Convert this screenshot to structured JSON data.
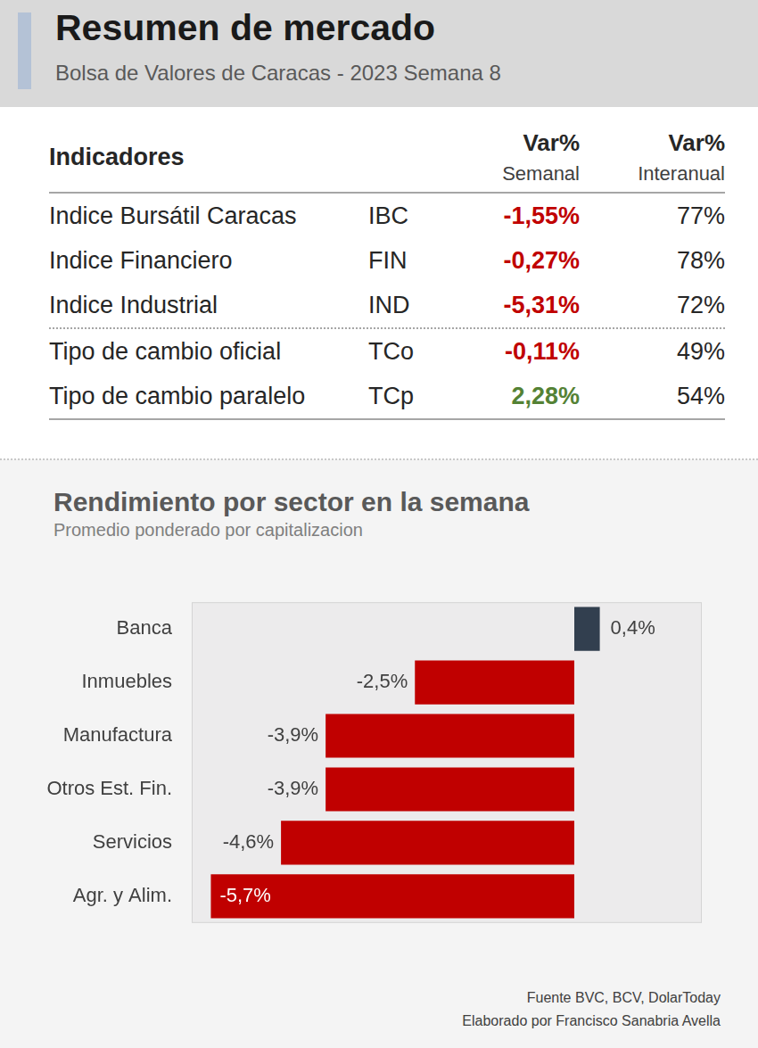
{
  "header": {
    "title": "Resumen de mercado",
    "subtitle": "Bolsa de Valores de Caracas - 2023 Semana 8"
  },
  "table": {
    "header_row": {
      "name": "Indicadores",
      "weekly": [
        "Var%",
        "Semanal"
      ],
      "annual": [
        "Var%",
        "Interanual"
      ]
    },
    "groups": [
      [
        [
          "Indice Bursátil Caracas",
          "IBC",
          "-1,55%",
          "77%"
        ],
        [
          "Indice Financiero",
          "FIN",
          "-0,27%",
          "78%"
        ],
        [
          "Indice Industrial",
          "IND",
          "-5,31%",
          "72%"
        ]
      ],
      [
        [
          "Tipo de cambio oficial",
          "TCo",
          "-0,11%",
          "49%"
        ],
        [
          "Tipo de cambio paralelo",
          "TCp",
          "2,28%",
          "54%"
        ]
      ]
    ]
  },
  "chart_data": {
    "type": "bar",
    "orientation": "horizontal",
    "title": "Rendimiento por sector en la semana",
    "subtitle": "Promedio ponderado por capitalizacion",
    "categories": [
      "Banca",
      "Inmuebles",
      "Manufactura",
      "Otros Est. Fin.",
      "Servicios",
      "Agr. y Alim."
    ],
    "values": [
      0.4,
      -2.5,
      -3.9,
      -3.9,
      -4.6,
      -5.7
    ],
    "value_labels": [
      "0,4%",
      "-2,5%",
      "-3,9%",
      "-3,9%",
      "-4,6%",
      "-5,7%"
    ],
    "colors": [
      "#323f4f",
      "#c00000",
      "#c00000",
      "#c00000",
      "#c00000",
      "#c00000"
    ],
    "xlim": [
      -6,
      2
    ],
    "grid": false,
    "data_labels": true,
    "tick_labels": "y"
  },
  "footer": {
    "source": "Fuente BVC, BCV, DolarToday",
    "author": "Elaborado por Francisco Sanabria Avella"
  }
}
